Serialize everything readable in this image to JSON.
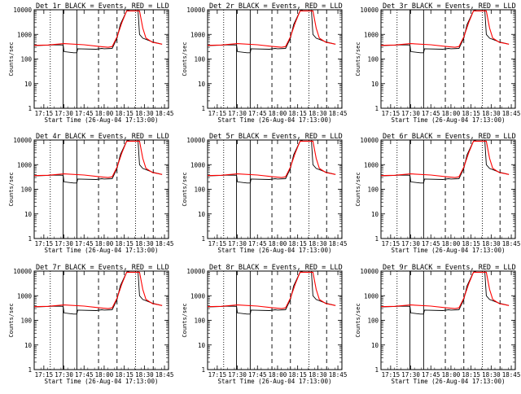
{
  "page": {
    "series_colors": {
      "events": "#000000",
      "lld": "#ff0000"
    }
  },
  "chart_data": [
    {
      "type": "line",
      "title": "Det 1r BLACK = Events, RED = LLD",
      "xlabel": "Start Time (26-Aug-04 17:13:00)",
      "ylabel": "Counts/sec",
      "x_ticks": [
        "17:15",
        "17:30",
        "17:45",
        "18:00",
        "18:15",
        "18:30",
        "18:45"
      ],
      "y_ticks": [
        "1",
        "10",
        "100",
        "1000",
        "10000"
      ],
      "log_y": true,
      "ylim": [
        1,
        10000
      ],
      "series": [
        {
          "key": "events",
          "x": [
            17.13,
            17.25,
            17.4,
            17.49,
            17.5,
            17.62,
            17.66,
            17.67,
            17.9,
            17.97,
            18.0,
            18.1,
            18.16,
            18.2,
            18.28,
            18.32,
            18.36,
            18.42,
            18.44,
            18.48,
            18.6,
            18.69,
            18.72
          ],
          "y": [
            350,
            360,
            380,
            370,
            200,
            180,
            180,
            260,
            250,
            270,
            260,
            270,
            700,
            2500,
            9000,
            10000,
            10000,
            10000,
            1000,
            700,
            500,
            420,
            400
          ]
        },
        {
          "key": "lld",
          "x": [
            17.13,
            17.3,
            17.5,
            17.75,
            17.95,
            18.05,
            18.1,
            18.16,
            18.22,
            18.28,
            18.44,
            18.48,
            18.52,
            18.6,
            18.72
          ],
          "y": [
            360,
            370,
            420,
            380,
            320,
            300,
            320,
            800,
            3000,
            9000,
            9000,
            1800,
            700,
            480,
            400
          ]
        }
      ]
    },
    {
      "type": "line",
      "title": "Det 2r BLACK = Events, RED = LLD",
      "xlabel": "Start Time (26-Aug-04 17:13:00)",
      "ylabel": "Counts/sec",
      "x_ticks": [
        "17:15",
        "17:30",
        "17:45",
        "18:00",
        "18:15",
        "18:30",
        "18:45"
      ],
      "y_ticks": [
        "1",
        "10",
        "100",
        "1000",
        "10000"
      ],
      "log_y": true,
      "ylim": [
        1,
        10000
      ],
      "series": [
        {
          "key": "events",
          "x": [
            17.13,
            17.25,
            17.4,
            17.49,
            17.5,
            17.62,
            17.66,
            17.67,
            17.9,
            17.97,
            18.0,
            18.1,
            18.16,
            18.2,
            18.28,
            18.32,
            18.36,
            18.42,
            18.44,
            18.48,
            18.6,
            18.69,
            18.72
          ],
          "y": [
            350,
            360,
            380,
            370,
            200,
            180,
            180,
            260,
            250,
            270,
            260,
            270,
            700,
            2500,
            9000,
            10000,
            10000,
            10000,
            1000,
            700,
            500,
            420,
            400
          ]
        },
        {
          "key": "lld",
          "x": [
            17.13,
            17.3,
            17.5,
            17.75,
            17.95,
            18.05,
            18.1,
            18.16,
            18.22,
            18.28,
            18.44,
            18.48,
            18.52,
            18.6,
            18.72
          ],
          "y": [
            360,
            370,
            420,
            380,
            320,
            300,
            320,
            800,
            3000,
            9000,
            9000,
            1800,
            700,
            480,
            400
          ]
        }
      ]
    },
    {
      "type": "line",
      "title": "Det 3r BLACK = Events, RED = LLD",
      "xlabel": "Start Time (26-Aug-04 17:13:00)",
      "ylabel": "Counts/sec",
      "x_ticks": [
        "17:15",
        "17:30",
        "17:45",
        "18:00",
        "18:15",
        "18:30",
        "18:45"
      ],
      "y_ticks": [
        "1",
        "10",
        "100",
        "1000",
        "10000"
      ],
      "log_y": true,
      "ylim": [
        1,
        10000
      ],
      "series": [
        {
          "key": "events",
          "x": [
            17.13,
            17.25,
            17.4,
            17.49,
            17.5,
            17.62,
            17.66,
            17.67,
            17.9,
            17.97,
            18.0,
            18.1,
            18.16,
            18.2,
            18.28,
            18.32,
            18.36,
            18.42,
            18.44,
            18.48,
            18.6,
            18.69,
            18.72
          ],
          "y": [
            350,
            360,
            380,
            370,
            200,
            180,
            180,
            260,
            250,
            270,
            260,
            270,
            700,
            2500,
            9000,
            10000,
            10000,
            10000,
            1000,
            700,
            500,
            420,
            400
          ]
        },
        {
          "key": "lld",
          "x": [
            17.13,
            17.3,
            17.5,
            17.75,
            17.95,
            18.05,
            18.1,
            18.16,
            18.22,
            18.28,
            18.44,
            18.48,
            18.52,
            18.6,
            18.72
          ],
          "y": [
            360,
            370,
            420,
            380,
            320,
            300,
            320,
            800,
            3000,
            9000,
            9000,
            1800,
            700,
            480,
            400
          ]
        }
      ]
    },
    {
      "type": "line",
      "title": "Det 4r BLACK = Events, RED = LLD",
      "xlabel": "Start Time (26-Aug-04 17:13:00)",
      "ylabel": "Counts/sec",
      "x_ticks": [
        "17:15",
        "17:30",
        "17:45",
        "18:00",
        "18:15",
        "18:30",
        "18:45"
      ],
      "y_ticks": [
        "1",
        "10",
        "100",
        "1000",
        "10000"
      ],
      "log_y": true,
      "ylim": [
        1,
        10000
      ],
      "series": [
        {
          "key": "events",
          "x": [
            17.13,
            17.25,
            17.4,
            17.49,
            17.5,
            17.62,
            17.66,
            17.67,
            17.9,
            17.97,
            18.0,
            18.1,
            18.16,
            18.2,
            18.28,
            18.32,
            18.36,
            18.42,
            18.44,
            18.48,
            18.6,
            18.69,
            18.72
          ],
          "y": [
            350,
            360,
            380,
            370,
            200,
            180,
            180,
            260,
            250,
            270,
            260,
            270,
            700,
            2500,
            9000,
            10000,
            10000,
            10000,
            1000,
            700,
            500,
            420,
            400
          ]
        },
        {
          "key": "lld",
          "x": [
            17.13,
            17.3,
            17.5,
            17.75,
            17.95,
            18.05,
            18.1,
            18.16,
            18.22,
            18.28,
            18.44,
            18.48,
            18.52,
            18.6,
            18.72
          ],
          "y": [
            360,
            370,
            420,
            380,
            320,
            300,
            320,
            800,
            3000,
            9000,
            9000,
            1800,
            700,
            480,
            400
          ]
        }
      ]
    },
    {
      "type": "line",
      "title": "Det 5r BLACK = Events, RED = LLD",
      "xlabel": "Start Time (26-Aug-04 17:13:00)",
      "ylabel": "Counts/sec",
      "x_ticks": [
        "17:15",
        "17:30",
        "17:45",
        "18:00",
        "18:15",
        "18:30",
        "18:45"
      ],
      "y_ticks": [
        "1",
        "10",
        "100",
        "1000",
        "10000"
      ],
      "log_y": true,
      "ylim": [
        1,
        10000
      ],
      "series": [
        {
          "key": "events",
          "x": [
            17.13,
            17.25,
            17.4,
            17.49,
            17.5,
            17.62,
            17.66,
            17.67,
            17.9,
            17.97,
            18.0,
            18.1,
            18.16,
            18.2,
            18.28,
            18.32,
            18.36,
            18.42,
            18.44,
            18.48,
            18.6,
            18.69,
            18.72
          ],
          "y": [
            350,
            360,
            380,
            370,
            200,
            180,
            180,
            260,
            250,
            270,
            260,
            270,
            700,
            2500,
            9000,
            10000,
            10000,
            10000,
            1000,
            700,
            500,
            420,
            400
          ]
        },
        {
          "key": "lld",
          "x": [
            17.13,
            17.3,
            17.5,
            17.75,
            17.95,
            18.05,
            18.1,
            18.16,
            18.22,
            18.28,
            18.44,
            18.48,
            18.52,
            18.6,
            18.72
          ],
          "y": [
            360,
            370,
            420,
            380,
            320,
            300,
            320,
            800,
            3000,
            9000,
            9000,
            1800,
            700,
            480,
            400
          ]
        }
      ]
    },
    {
      "type": "line",
      "title": "Det 6r BLACK = Events, RED = LLD",
      "xlabel": "Start Time (26-Aug-04 17:13:00)",
      "ylabel": "Counts/sec",
      "x_ticks": [
        "17:15",
        "17:30",
        "17:45",
        "18:00",
        "18:15",
        "18:30",
        "18:45"
      ],
      "y_ticks": [
        "1",
        "10",
        "100",
        "1000",
        "10000"
      ],
      "log_y": true,
      "ylim": [
        1,
        10000
      ],
      "series": [
        {
          "key": "events",
          "x": [
            17.13,
            17.25,
            17.4,
            17.49,
            17.5,
            17.62,
            17.66,
            17.67,
            17.9,
            17.97,
            18.0,
            18.1,
            18.16,
            18.2,
            18.28,
            18.32,
            18.36,
            18.42,
            18.44,
            18.48,
            18.6,
            18.69,
            18.72
          ],
          "y": [
            350,
            360,
            380,
            370,
            200,
            180,
            180,
            260,
            250,
            270,
            260,
            270,
            700,
            2500,
            9000,
            10000,
            10000,
            10000,
            1000,
            700,
            500,
            420,
            400
          ]
        },
        {
          "key": "lld",
          "x": [
            17.13,
            17.3,
            17.5,
            17.75,
            17.95,
            18.05,
            18.1,
            18.16,
            18.22,
            18.28,
            18.44,
            18.48,
            18.52,
            18.6,
            18.72
          ],
          "y": [
            360,
            370,
            420,
            380,
            320,
            300,
            320,
            800,
            3000,
            9000,
            9000,
            1800,
            700,
            480,
            400
          ]
        }
      ]
    },
    {
      "type": "line",
      "title": "Det 7r BLACK = Events, RED = LLD",
      "xlabel": "Start Time (26-Aug-04 17:13:00)",
      "ylabel": "Counts/sec",
      "x_ticks": [
        "17:15",
        "17:30",
        "17:45",
        "18:00",
        "18:15",
        "18:30",
        "18:45"
      ],
      "y_ticks": [
        "1",
        "10",
        "100",
        "1000",
        "10000"
      ],
      "log_y": true,
      "ylim": [
        1,
        10000
      ],
      "series": [
        {
          "key": "events",
          "x": [
            17.13,
            17.25,
            17.4,
            17.49,
            17.5,
            17.62,
            17.66,
            17.67,
            17.9,
            17.97,
            18.0,
            18.1,
            18.16,
            18.2,
            18.28,
            18.32,
            18.36,
            18.42,
            18.44,
            18.48,
            18.6,
            18.69,
            18.72
          ],
          "y": [
            350,
            360,
            380,
            370,
            200,
            180,
            180,
            260,
            250,
            270,
            260,
            270,
            700,
            2500,
            9000,
            10000,
            10000,
            10000,
            1000,
            700,
            500,
            420,
            400
          ]
        },
        {
          "key": "lld",
          "x": [
            17.13,
            17.3,
            17.5,
            17.75,
            17.95,
            18.05,
            18.1,
            18.16,
            18.22,
            18.28,
            18.44,
            18.48,
            18.52,
            18.6,
            18.72
          ],
          "y": [
            360,
            370,
            420,
            380,
            320,
            300,
            320,
            800,
            3000,
            9000,
            9000,
            1800,
            700,
            480,
            400
          ]
        }
      ]
    },
    {
      "type": "line",
      "title": "Det 8r BLACK = Events, RED = LLD",
      "xlabel": "Start Time (26-Aug-04 17:13:00)",
      "ylabel": "Counts/sec",
      "x_ticks": [
        "17:15",
        "17:30",
        "17:45",
        "18:00",
        "18:15",
        "18:30",
        "18:45"
      ],
      "y_ticks": [
        "1",
        "10",
        "100",
        "1000",
        "10000"
      ],
      "log_y": true,
      "ylim": [
        1,
        10000
      ],
      "series": [
        {
          "key": "events",
          "x": [
            17.13,
            17.25,
            17.4,
            17.49,
            17.5,
            17.62,
            17.66,
            17.67,
            17.9,
            17.97,
            18.0,
            18.1,
            18.16,
            18.2,
            18.28,
            18.32,
            18.36,
            18.42,
            18.44,
            18.48,
            18.6,
            18.69,
            18.72
          ],
          "y": [
            350,
            360,
            380,
            370,
            200,
            180,
            180,
            260,
            250,
            270,
            260,
            270,
            700,
            2500,
            9000,
            10000,
            10000,
            10000,
            1000,
            700,
            500,
            420,
            400
          ]
        },
        {
          "key": "lld",
          "x": [
            17.13,
            17.3,
            17.5,
            17.75,
            17.95,
            18.05,
            18.1,
            18.16,
            18.22,
            18.28,
            18.44,
            18.48,
            18.52,
            18.6,
            18.72
          ],
          "y": [
            360,
            370,
            420,
            380,
            320,
            300,
            320,
            800,
            3000,
            9000,
            9000,
            1800,
            700,
            480,
            400
          ]
        }
      ]
    },
    {
      "type": "line",
      "title": "Det 9r BLACK = Events, RED = LLD",
      "xlabel": "Start Time (26-Aug-04 17:13:00)",
      "ylabel": "Counts/sec",
      "x_ticks": [
        "17:15",
        "17:30",
        "17:45",
        "18:00",
        "18:15",
        "18:30",
        "18:45"
      ],
      "y_ticks": [
        "1",
        "10",
        "100",
        "1000",
        "10000"
      ],
      "log_y": true,
      "ylim": [
        1,
        10000
      ],
      "series": [
        {
          "key": "events",
          "x": [
            17.13,
            17.25,
            17.4,
            17.49,
            17.5,
            17.62,
            17.66,
            17.67,
            17.9,
            17.97,
            18.0,
            18.1,
            18.16,
            18.2,
            18.28,
            18.32,
            18.36,
            18.42,
            18.44,
            18.48,
            18.6,
            18.69,
            18.72
          ],
          "y": [
            350,
            360,
            380,
            370,
            200,
            180,
            180,
            260,
            250,
            270,
            260,
            270,
            700,
            2500,
            9000,
            10000,
            10000,
            10000,
            1000,
            700,
            500,
            420,
            400
          ]
        },
        {
          "key": "lld",
          "x": [
            17.13,
            17.3,
            17.5,
            17.75,
            17.95,
            18.05,
            18.1,
            18.16,
            18.22,
            18.28,
            18.44,
            18.48,
            18.52,
            18.6,
            18.72
          ],
          "y": [
            360,
            370,
            420,
            380,
            320,
            300,
            320,
            800,
            3000,
            9000,
            9000,
            1800,
            700,
            480,
            400
          ]
        }
      ]
    }
  ]
}
